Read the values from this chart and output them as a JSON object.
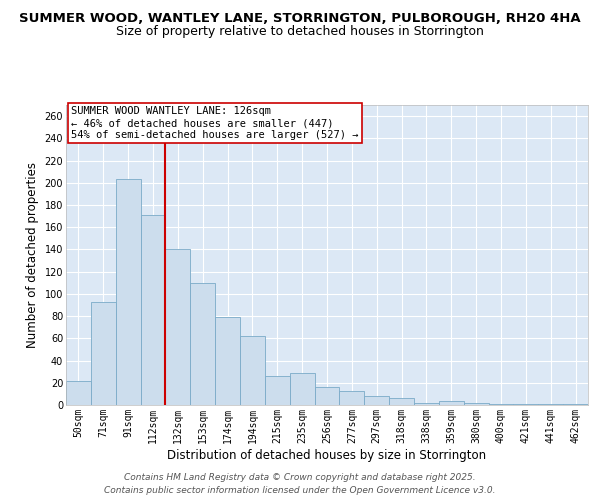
{
  "title": "SUMMER WOOD, WANTLEY LANE, STORRINGTON, PULBOROUGH, RH20 4HA",
  "subtitle": "Size of property relative to detached houses in Storrington",
  "xlabel": "Distribution of detached houses by size in Storrington",
  "ylabel": "Number of detached properties",
  "bar_labels": [
    "50sqm",
    "71sqm",
    "91sqm",
    "112sqm",
    "132sqm",
    "153sqm",
    "174sqm",
    "194sqm",
    "215sqm",
    "235sqm",
    "256sqm",
    "277sqm",
    "297sqm",
    "318sqm",
    "338sqm",
    "359sqm",
    "380sqm",
    "400sqm",
    "421sqm",
    "441sqm",
    "462sqm"
  ],
  "bar_values": [
    22,
    93,
    203,
    171,
    140,
    110,
    79,
    62,
    26,
    29,
    16,
    13,
    8,
    6,
    2,
    4,
    2,
    1,
    1,
    1,
    1
  ],
  "bar_color": "#ccdded",
  "bar_edge_color": "#7aaac8",
  "vline_color": "#cc0000",
  "annotation_text_line1": "SUMMER WOOD WANTLEY LANE: 126sqm",
  "annotation_text_line2": "← 46% of detached houses are smaller (447)",
  "annotation_text_line3": "54% of semi-detached houses are larger (527) →",
  "ylim": [
    0,
    270
  ],
  "yticks": [
    0,
    20,
    40,
    60,
    80,
    100,
    120,
    140,
    160,
    180,
    200,
    220,
    240,
    260
  ],
  "plot_bg_color": "#dce8f5",
  "grid_color": "#ffffff",
  "footer_line1": "Contains HM Land Registry data © Crown copyright and database right 2025.",
  "footer_line2": "Contains public sector information licensed under the Open Government Licence v3.0.",
  "title_fontsize": 9.5,
  "subtitle_fontsize": 9,
  "axis_label_fontsize": 8.5,
  "tick_fontsize": 7,
  "annotation_fontsize": 7.5,
  "footer_fontsize": 6.5
}
